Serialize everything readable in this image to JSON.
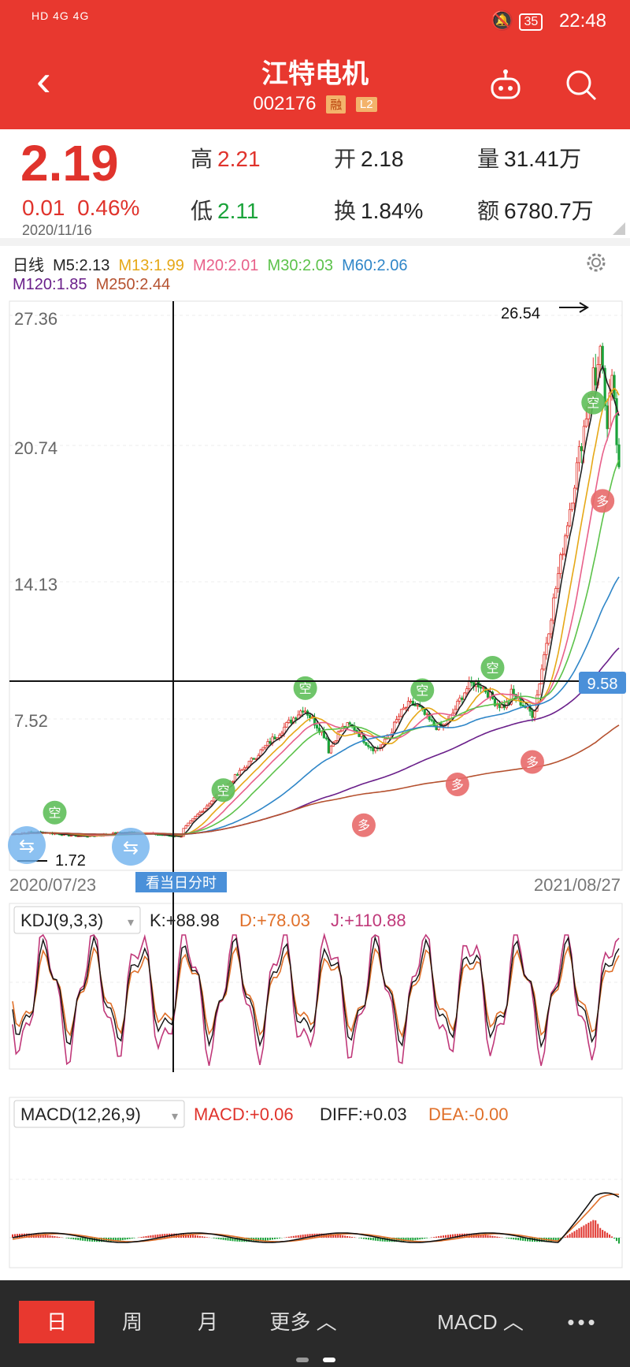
{
  "status_bar": {
    "left": "HD 4G 4G",
    "battery": "35",
    "time": "22:48"
  },
  "header": {
    "title": "江特电机",
    "code": "002176",
    "badge_rong": "融",
    "badge_l2": "L2"
  },
  "quote": {
    "price": "2.19",
    "change": "0.01",
    "change_pct": "0.46%",
    "date": "2020/11/16",
    "high_label": "高",
    "high": "2.21",
    "open_label": "开",
    "open": "2.18",
    "volume_label": "量",
    "volume": "31.41万",
    "low_label": "低",
    "low": "2.11",
    "turnover_label": "换",
    "turnover": "1.84%",
    "amount_label": "额",
    "amount": "6780.7万"
  },
  "ma_legend": {
    "period": "日线",
    "m5": "M5:2.13",
    "m13": "M13:1.99",
    "m20": "M20:2.01",
    "m30": "M30:2.03",
    "m60": "M60:2.06",
    "m120": "M120:1.85",
    "m250": "M250:2.44"
  },
  "price_chart": {
    "y_ticks": [
      "27.36",
      "20.74",
      "14.13",
      "7.52"
    ],
    "high_marker": "26.54",
    "low_marker": "1.72",
    "crosshair_price": "9.58",
    "start_date": "2020/07/23",
    "end_date": "2021/08/27",
    "intraday_button": "看当日分时",
    "signal_buy": "多",
    "signal_sell": "空"
  },
  "kdj": {
    "name": "KDJ(9,3,3)",
    "k": "K:+88.98",
    "d": "D:+78.03",
    "j": "J:+110.88"
  },
  "macd": {
    "name": "MACD(12,26,9)",
    "macd": "MACD:+0.06",
    "diff": "DIFF:+0.03",
    "dea": "DEA:-0.00"
  },
  "tabs": {
    "day": "日",
    "week": "周",
    "month": "月",
    "more": "更多 ︿",
    "indicator": "MACD ︿",
    "menu": "•••"
  },
  "colors": {
    "header_red": "#e8382f",
    "up_red": "#e0332c",
    "down_green": "#1aa33a",
    "m5": "#222222",
    "m13": "#e6a817",
    "m20": "#e8608a",
    "m30": "#5cc24a",
    "m60": "#2f86c8",
    "m120": "#6a1f8a",
    "m250": "#b5512f"
  }
}
